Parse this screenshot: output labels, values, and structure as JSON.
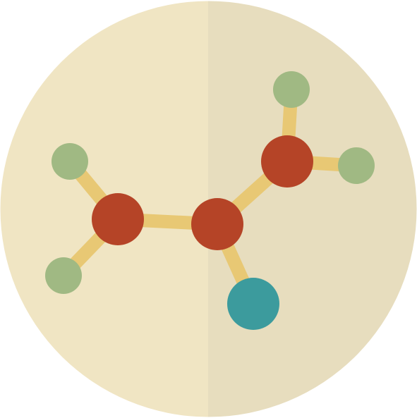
{
  "icon": {
    "name": "molecule-icon",
    "colors": {
      "background_left": "#F0E5C3",
      "background_right": "#E7DDBE",
      "bond": "#E8C874",
      "atom_primary": "#B54427",
      "atom_small": "#A0B983",
      "atom_accent": "#3C9B9D"
    },
    "atoms": [
      {
        "id": "h1",
        "role": "small"
      },
      {
        "id": "h2",
        "role": "small"
      },
      {
        "id": "c1",
        "role": "primary"
      },
      {
        "id": "c2",
        "role": "primary"
      },
      {
        "id": "c3",
        "role": "primary"
      },
      {
        "id": "h3",
        "role": "small"
      },
      {
        "id": "h4",
        "role": "small"
      },
      {
        "id": "x1",
        "role": "accent"
      }
    ],
    "bonds": [
      [
        "h1",
        "c1"
      ],
      [
        "h2",
        "c1"
      ],
      [
        "c1",
        "c2"
      ],
      [
        "c2",
        "c3"
      ],
      [
        "c2",
        "x1"
      ],
      [
        "c3",
        "h3"
      ],
      [
        "c3",
        "h4"
      ]
    ]
  }
}
